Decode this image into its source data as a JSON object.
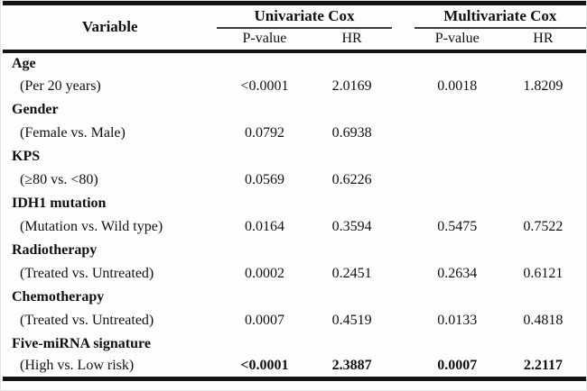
{
  "table": {
    "header": {
      "variable": "Variable",
      "group1": "Univariate Cox",
      "group2": "Multivariate Cox",
      "col_p1": "P-value",
      "col_hr1": "HR",
      "col_p2": "P-value",
      "col_hr2": "HR"
    },
    "rows": [
      {
        "kind": "category",
        "variable": "Age",
        "uni_p": "",
        "uni_hr": "",
        "multi_p": "",
        "multi_hr": ""
      },
      {
        "kind": "sub",
        "variable": "(Per 20 years)",
        "uni_p": "<0.0001",
        "uni_hr": "2.0169",
        "multi_p": "0.0018",
        "multi_hr": "1.8209"
      },
      {
        "kind": "category",
        "variable": "Gender",
        "uni_p": "",
        "uni_hr": "",
        "multi_p": "",
        "multi_hr": ""
      },
      {
        "kind": "sub",
        "variable": "(Female vs. Male)",
        "uni_p": "0.0792",
        "uni_hr": "0.6938",
        "multi_p": "",
        "multi_hr": ""
      },
      {
        "kind": "category",
        "variable": "KPS",
        "uni_p": "",
        "uni_hr": "",
        "multi_p": "",
        "multi_hr": ""
      },
      {
        "kind": "sub",
        "variable": "(≥80 vs. <80)",
        "uni_p": "0.0569",
        "uni_hr": "0.6226",
        "multi_p": "",
        "multi_hr": ""
      },
      {
        "kind": "category",
        "variable": "IDH1 mutation",
        "uni_p": "",
        "uni_hr": "",
        "multi_p": "",
        "multi_hr": ""
      },
      {
        "kind": "sub",
        "variable": "(Mutation vs. Wild type)",
        "uni_p": "0.0164",
        "uni_hr": "0.3594",
        "multi_p": "0.5475",
        "multi_hr": "0.7522"
      },
      {
        "kind": "category",
        "variable": "Radiotherapy",
        "uni_p": "",
        "uni_hr": "",
        "multi_p": "",
        "multi_hr": ""
      },
      {
        "kind": "sub",
        "variable": "(Treated vs. Untreated)",
        "uni_p": "0.0002",
        "uni_hr": "0.2451",
        "multi_p": "0.2634",
        "multi_hr": "0.6121"
      },
      {
        "kind": "category",
        "variable": "Chemotherapy",
        "uni_p": "",
        "uni_hr": "",
        "multi_p": "",
        "multi_hr": ""
      },
      {
        "kind": "sub",
        "variable": "(Treated vs. Untreated)",
        "uni_p": "0.0007",
        "uni_hr": "0.4519",
        "multi_p": "0.0133",
        "multi_hr": "0.4818"
      },
      {
        "kind": "category",
        "variable": "Five-miRNA signature",
        "uni_p": "",
        "uni_hr": "",
        "multi_p": "",
        "multi_hr": ""
      },
      {
        "kind": "sub-bold",
        "variable": "(High vs. Low risk)",
        "uni_p": "<0.0001",
        "uni_hr": "2.3887",
        "multi_p": "0.0007",
        "multi_hr": "2.2117"
      }
    ]
  }
}
